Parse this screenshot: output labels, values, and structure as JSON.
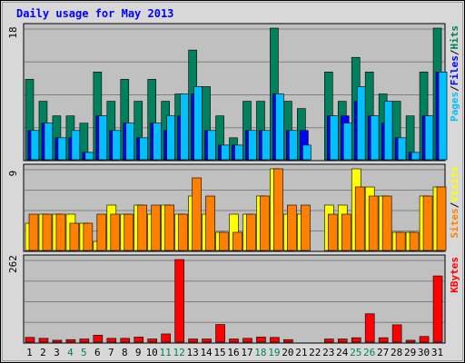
{
  "chart_data": {
    "type": "bar",
    "title": "Daily usage for May 2013",
    "categories": [
      "1",
      "2",
      "3",
      "4",
      "5",
      "6",
      "7",
      "8",
      "9",
      "10",
      "11",
      "12",
      "13",
      "14",
      "15",
      "16",
      "17",
      "18",
      "19",
      "20",
      "21",
      "22",
      "23",
      "24",
      "25",
      "26",
      "27",
      "28",
      "29",
      "30",
      "31"
    ],
    "weekend_days": [
      "4",
      "5",
      "11",
      "12",
      "18",
      "19",
      "25",
      "26"
    ],
    "grid": true,
    "panels": [
      {
        "id": "hits-files-pages",
        "ylim": [
          0,
          18
        ],
        "max_label": "18",
        "axis_label_parts": [
          "Pages",
          "/",
          "Files",
          "/",
          "Hits"
        ],
        "series": [
          {
            "name": "Hits",
            "color": "#00805c",
            "values": [
              11,
              8,
              6,
              6,
              5,
              12,
              8,
              11,
              8,
              11,
              8,
              9,
              15,
              10,
              6,
              3,
              8,
              8,
              18,
              8,
              7,
              0,
              12,
              8,
              14,
              12,
              9,
              8,
              6,
              12,
              18
            ]
          },
          {
            "name": "Files",
            "color": "#0000ff",
            "values": [
              4,
              5,
              3,
              3,
              1,
              6,
              4,
              5,
              3,
              5,
              4,
              6,
              9,
              4,
              2,
              2,
              4,
              4,
              9,
              4,
              4,
              0,
              6,
              6,
              8,
              6,
              5,
              3,
              1,
              6,
              12
            ]
          },
          {
            "name": "Pages",
            "color": "#00c0ff",
            "values": [
              4,
              5,
              3,
              4,
              1,
              6,
              4,
              5,
              3,
              5,
              6,
              9,
              10,
              4,
              2,
              2,
              4,
              4,
              9,
              4,
              2,
              0,
              6,
              5,
              10,
              6,
              8,
              3,
              1,
              6,
              12
            ]
          }
        ]
      },
      {
        "id": "visits-sites",
        "ylim": [
          0,
          9
        ],
        "max_label": "9",
        "axis_label_parts": [
          "Sites",
          "/",
          "Visits"
        ],
        "series": [
          {
            "name": "Visits",
            "color": "#ffff00",
            "values": [
              3,
              4,
              4,
              4,
              3,
              1,
              5,
              4,
              5,
              4,
              5,
              4,
              6,
              4,
              2,
              4,
              4,
              6,
              9,
              4,
              4,
              0,
              5,
              5,
              9,
              7,
              6,
              2,
              2,
              6,
              7
            ]
          },
          {
            "name": "Sites",
            "color": "#ff8000",
            "values": [
              4,
              4,
              4,
              3,
              3,
              4,
              4,
              4,
              5,
              5,
              5,
              4,
              8,
              6,
              2,
              2,
              4,
              6,
              9,
              5,
              5,
              0,
              4,
              4,
              7,
              6,
              6,
              2,
              2,
              6,
              7
            ]
          }
        ]
      },
      {
        "id": "kbytes",
        "ylim": [
          0,
          262
        ],
        "max_label": "262",
        "axis_label_parts": [
          "KBytes"
        ],
        "series": [
          {
            "name": "KBytes",
            "color": "#ff0000",
            "values": [
              15,
              12,
              6,
              8,
              10,
              22,
              12,
              12,
              16,
              10,
              26,
              262,
              10,
              10,
              56,
              10,
              12,
              16,
              15,
              8,
              0,
              0,
              10,
              10,
              14,
              90,
              14,
              55,
              6,
              18,
              210
            ]
          }
        ]
      }
    ]
  },
  "colors": {
    "title": "#0000ff",
    "weekday_label": "#000000",
    "weekend_label": "#00805c",
    "plot_bg": "#c0c0c0",
    "frame_bg": "#d8d8d8",
    "slash": "#000000",
    "axis_parts": {
      "Pages": "#00c0ff",
      "Files": "#0000ff",
      "Hits": "#00805c",
      "Sites": "#ff8000",
      "Visits": "#ffff00",
      "KBytes": "#ff0000"
    }
  }
}
